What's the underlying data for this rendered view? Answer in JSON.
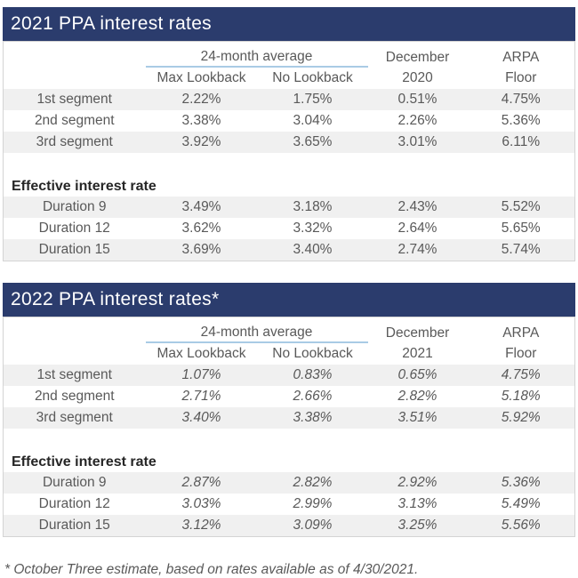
{
  "page": {
    "footnote": "* October Three estimate, based on rates available as of 4/30/2021."
  },
  "colors": {
    "band_bg": "#2b3c6d",
    "band_text": "#ffffff",
    "body_text": "#595959",
    "section_text": "#262626",
    "stripe_bg": "#f0f0f0",
    "group_underline": "#a9cbe5",
    "table_border": "#d4d4d4"
  },
  "tables": [
    {
      "title": "2021 PPA interest rates",
      "group_header": "24-month average",
      "sub_headers": [
        "Max Lookback",
        "No Lookback"
      ],
      "december_header": {
        "line1": "December",
        "line2": "2020"
      },
      "arpa_header": {
        "line1": "ARPA",
        "line2": "Floor"
      },
      "section_header": "Effective interest rate",
      "values_italic": false,
      "segment_rows": [
        {
          "label": "1st segment",
          "values": [
            "2.22%",
            "1.75%",
            "0.51%",
            "4.75%"
          ]
        },
        {
          "label": "2nd segment",
          "values": [
            "3.38%",
            "3.04%",
            "2.26%",
            "5.36%"
          ]
        },
        {
          "label": "3rd segment",
          "values": [
            "3.92%",
            "3.65%",
            "3.01%",
            "6.11%"
          ]
        }
      ],
      "duration_rows": [
        {
          "label": "Duration 9",
          "values": [
            "3.49%",
            "3.18%",
            "2.43%",
            "5.52%"
          ]
        },
        {
          "label": "Duration 12",
          "values": [
            "3.62%",
            "3.32%",
            "2.64%",
            "5.65%"
          ]
        },
        {
          "label": "Duration 15",
          "values": [
            "3.69%",
            "3.40%",
            "2.74%",
            "5.74%"
          ]
        }
      ]
    },
    {
      "title": "2022 PPA interest rates*",
      "group_header": "24-month average",
      "sub_headers": [
        "Max Lookback",
        "No Lookback"
      ],
      "december_header": {
        "line1": "December",
        "line2": "2021"
      },
      "arpa_header": {
        "line1": "ARPA",
        "line2": "Floor"
      },
      "section_header": "Effective interest rate",
      "values_italic": true,
      "segment_rows": [
        {
          "label": "1st segment",
          "values": [
            "1.07%",
            "0.83%",
            "0.65%",
            "4.75%"
          ]
        },
        {
          "label": "2nd segment",
          "values": [
            "2.71%",
            "2.66%",
            "2.82%",
            "5.18%"
          ]
        },
        {
          "label": "3rd segment",
          "values": [
            "3.40%",
            "3.38%",
            "3.51%",
            "5.92%"
          ]
        }
      ],
      "duration_rows": [
        {
          "label": "Duration 9",
          "values": [
            "2.87%",
            "2.82%",
            "2.92%",
            "5.36%"
          ]
        },
        {
          "label": "Duration 12",
          "values": [
            "3.03%",
            "2.99%",
            "3.13%",
            "5.49%"
          ]
        },
        {
          "label": "Duration 15",
          "values": [
            "3.12%",
            "3.09%",
            "3.25%",
            "5.56%"
          ]
        }
      ]
    }
  ],
  "chart_data": [
    {
      "type": "table",
      "title": "2021 PPA interest rates",
      "column_group": {
        "label": "24-month average",
        "spans": [
          "Max Lookback",
          "No Lookback"
        ]
      },
      "columns": [
        "",
        "Max Lookback",
        "No Lookback",
        "December 2020",
        "ARPA Floor"
      ],
      "rows": [
        [
          "1st segment",
          "2.22%",
          "1.75%",
          "0.51%",
          "4.75%"
        ],
        [
          "2nd segment",
          "3.38%",
          "3.04%",
          "2.26%",
          "5.36%"
        ],
        [
          "3rd segment",
          "3.92%",
          "3.65%",
          "3.01%",
          "6.11%"
        ],
        [
          "Effective interest rate",
          "",
          "",
          "",
          ""
        ],
        [
          "Duration 9",
          "3.49%",
          "3.18%",
          "2.43%",
          "5.52%"
        ],
        [
          "Duration 12",
          "3.62%",
          "3.32%",
          "2.64%",
          "5.65%"
        ],
        [
          "Duration 15",
          "3.69%",
          "3.40%",
          "2.74%",
          "5.74%"
        ]
      ]
    },
    {
      "type": "table",
      "title": "2022 PPA interest rates*",
      "column_group": {
        "label": "24-month average",
        "spans": [
          "Max Lookback",
          "No Lookback"
        ]
      },
      "columns": [
        "",
        "Max Lookback",
        "No Lookback",
        "December 2021",
        "ARPA Floor"
      ],
      "rows": [
        [
          "1st segment",
          "1.07%",
          "0.83%",
          "0.65%",
          "4.75%"
        ],
        [
          "2nd segment",
          "2.71%",
          "2.66%",
          "2.82%",
          "5.18%"
        ],
        [
          "3rd segment",
          "3.40%",
          "3.38%",
          "3.51%",
          "5.92%"
        ],
        [
          "Effective interest rate",
          "",
          "",
          "",
          ""
        ],
        [
          "Duration 9",
          "2.87%",
          "2.82%",
          "2.92%",
          "5.36%"
        ],
        [
          "Duration 12",
          "3.03%",
          "2.99%",
          "3.13%",
          "5.49%"
        ],
        [
          "Duration 15",
          "3.12%",
          "3.09%",
          "3.25%",
          "5.56%"
        ]
      ],
      "footnote": "* October Three estimate, based on rates available as of 4/30/2021."
    }
  ]
}
